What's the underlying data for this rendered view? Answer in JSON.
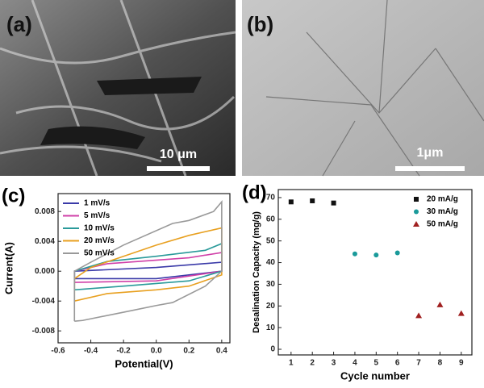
{
  "panels": {
    "a": {
      "label": "(a)",
      "scale_bar": "10 μm"
    },
    "b": {
      "label": "(b)",
      "scale_bar": "1μm"
    }
  },
  "chart_data": [
    {
      "type": "line",
      "title": "(c)",
      "x_label": "Potential(V)",
      "y_label": "Current(A)",
      "xlim": [
        -0.6,
        0.45
      ],
      "ylim": [
        -0.0096,
        0.0104
      ],
      "xticks": [
        -0.6,
        -0.4,
        -0.2,
        {
          "value": 0,
          "label": "0.0"
        },
        0.2,
        0.4
      ],
      "yticks": [
        -0.008,
        -0.004,
        {
          "value": 0,
          "label": "0.000"
        },
        0.004,
        0.008
      ],
      "legend": "upper left",
      "series": [
        {
          "name": "1 mV/s",
          "color": "#3a3aa8",
          "x": [
            -0.5,
            0,
            0.4,
            0.4,
            0,
            -0.5,
            -0.5
          ],
          "values": [
            -0.001,
            -0.001,
            0,
            0.0012,
            0.0005,
            0,
            -0.001
          ]
        },
        {
          "name": "5 mV/s",
          "color": "#d040a8",
          "x": [
            -0.5,
            0,
            0.4,
            0.4,
            0.2,
            -0.3,
            -0.5,
            -0.5
          ],
          "values": [
            -0.0015,
            -0.0013,
            0,
            0.0025,
            0.0018,
            0.001,
            0,
            -0.0015
          ]
        },
        {
          "name": "10 mV/s",
          "color": "#2a9a9a",
          "x": [
            -0.5,
            -0.2,
            0.2,
            0.4,
            0.4,
            0.3,
            0,
            -0.3,
            -0.5,
            -0.5
          ],
          "values": [
            -0.0025,
            -0.002,
            -0.0013,
            0,
            0.0037,
            0.0028,
            0.002,
            0.0013,
            0,
            -0.0025
          ]
        },
        {
          "name": "20 mV/s",
          "color": "#e8a020",
          "x": [
            -0.5,
            -0.3,
            0,
            0.2,
            0.4,
            0.4,
            0.2,
            0,
            -0.2,
            -0.4,
            -0.5,
            -0.5
          ],
          "values": [
            -0.004,
            -0.003,
            -0.0025,
            -0.002,
            -0.0005,
            0.0058,
            0.0048,
            0.0035,
            0.002,
            0.0005,
            -0.001,
            -0.004
          ]
        },
        {
          "name": "50 mV/s",
          "color": "#999999",
          "x": [
            -0.5,
            -0.45,
            -0.2,
            0,
            0.1,
            0.3,
            0.4,
            0.4,
            0.35,
            0.2,
            0.1,
            -0.2,
            -0.4,
            -0.5,
            -0.5
          ],
          "values": [
            -0.0067,
            -0.0066,
            -0.0055,
            -0.0046,
            -0.0042,
            -0.002,
            0,
            0.0093,
            0.008,
            0.0068,
            0.0064,
            0.0035,
            0.0012,
            0,
            -0.0067
          ]
        }
      ]
    },
    {
      "type": "scatter",
      "title": "(d)",
      "x_label": "Cycle number",
      "y_label": "Desalination Capacity (mg/g)",
      "xlim": [
        0.4,
        9.5
      ],
      "ylim": [
        -2.6,
        73.7
      ],
      "xticks": [
        1,
        2,
        3,
        4,
        5,
        6,
        7,
        8,
        9
      ],
      "yticks": [
        0,
        10,
        20,
        30,
        40,
        50,
        60,
        70
      ],
      "legend": "upper right",
      "series": [
        {
          "name": "20 mA/g",
          "color": "#111111",
          "marker": "square",
          "x": [
            1,
            2,
            3
          ],
          "values": [
            68,
            68.5,
            67.5
          ]
        },
        {
          "name": "30 mA/g",
          "color": "#1a9a9a",
          "marker": "circle",
          "x": [
            4,
            5,
            6
          ],
          "values": [
            44,
            43.5,
            44.5
          ]
        },
        {
          "name": "50 mA/g",
          "color": "#a02020",
          "marker": "triangle",
          "x": [
            7,
            8,
            9
          ],
          "values": [
            15.5,
            20.5,
            16.5
          ]
        }
      ]
    }
  ]
}
